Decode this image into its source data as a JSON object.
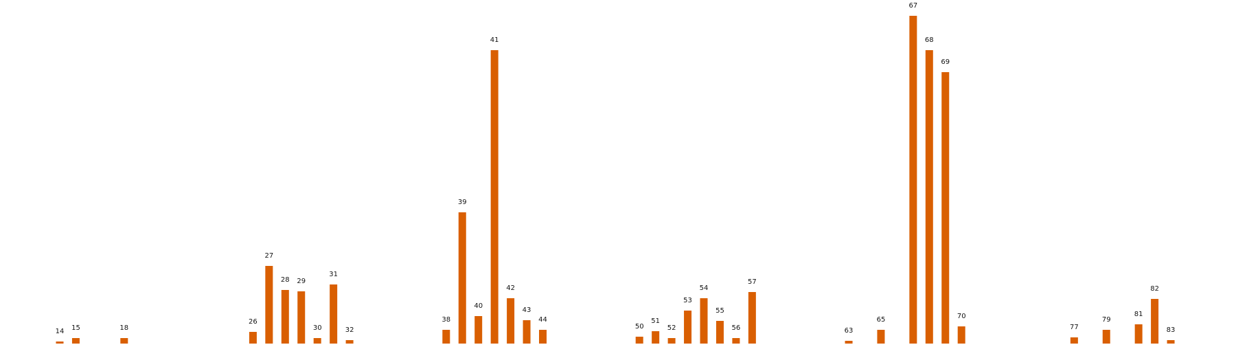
{
  "colors": {
    "bar": "#d95f02",
    "label": "#111111"
  },
  "chart_data": {
    "type": "bar",
    "title": "",
    "xlabel": "",
    "ylabel": "",
    "grid": false,
    "categories": [
      "14",
      "15",
      "18",
      "26",
      "27",
      "28",
      "29",
      "30",
      "31",
      "32",
      "38",
      "39",
      "40",
      "41",
      "42",
      "43",
      "44",
      "50",
      "51",
      "52",
      "53",
      "54",
      "55",
      "56",
      "57",
      "63",
      "65",
      "67",
      "68",
      "69",
      "70",
      "77",
      "79",
      "81",
      "82",
      "83"
    ],
    "values": [
      3,
      8,
      8,
      17,
      113,
      78,
      76,
      8,
      86,
      5,
      20,
      191,
      40,
      427,
      66,
      34,
      20,
      10,
      18,
      8,
      48,
      66,
      33,
      8,
      75,
      4,
      20,
      477,
      427,
      395,
      25,
      9,
      20,
      28,
      65,
      5
    ],
    "ylim": [
      0,
      500
    ]
  }
}
